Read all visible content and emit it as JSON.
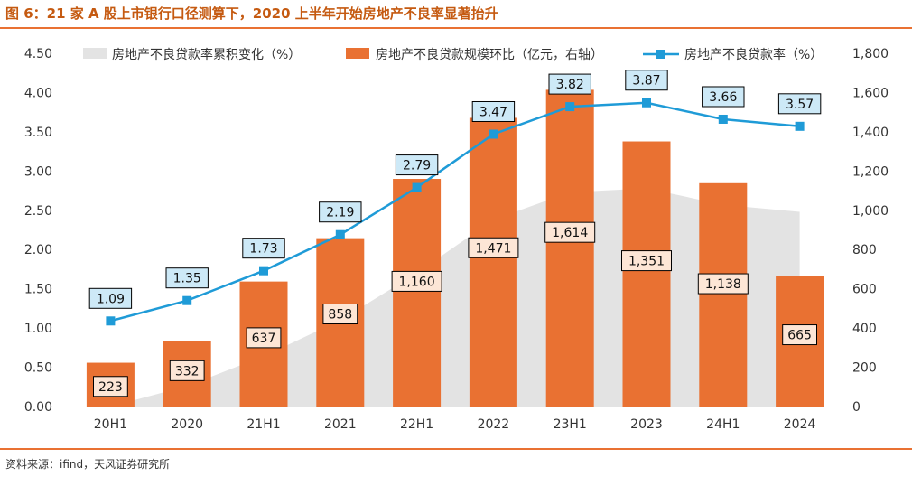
{
  "header": {
    "title": "图 6：21 家 A 股上市银行口径测算下，2020 上半年开始房地产不良率显著抬升"
  },
  "footer": {
    "source": "资料来源：ifind，天风证券研究所"
  },
  "colors": {
    "bar": "#e97132",
    "line": "#1f9bd7",
    "area": "#e3e3e3",
    "label_bar_bg": "#fde6d6",
    "label_line_bg": "#cde9f7"
  },
  "chart_data": {
    "type": "bar",
    "categories": [
      "20H1",
      "2020",
      "21H1",
      "2021",
      "22H1",
      "2022",
      "23H1",
      "2023",
      "24H1",
      "2024"
    ],
    "legend_position": "top",
    "series": [
      {
        "name": "房地产不良贷款率累积变化（%）",
        "type": "area",
        "axis": "left",
        "values": [
          0.0,
          0.26,
          0.64,
          1.1,
          1.7,
          2.38,
          2.73,
          2.78,
          2.57,
          2.48
        ]
      },
      {
        "name": "房地产不良贷款规模环比（亿元，右轴）",
        "type": "bar",
        "axis": "right",
        "values": [
          223,
          332,
          637,
          858,
          1160,
          1471,
          1614,
          1351,
          1138,
          665
        ],
        "labels": [
          "223",
          "332",
          "637",
          "858",
          "1,160",
          "1,471",
          "1,614",
          "1,351",
          "1,138",
          "665"
        ]
      },
      {
        "name": "房地产不良贷款率（%）",
        "type": "line",
        "axis": "left",
        "values": [
          1.09,
          1.35,
          1.73,
          2.19,
          2.79,
          3.47,
          3.82,
          3.87,
          3.66,
          3.57
        ],
        "labels": [
          "1.09",
          "1.35",
          "1.73",
          "2.19",
          "2.79",
          "3.47",
          "3.82",
          "3.87",
          "3.66",
          "3.57"
        ]
      }
    ],
    "y_left": {
      "ylim": [
        0,
        4.5
      ],
      "ticks": [
        "0.00",
        "0.50",
        "1.00",
        "1.50",
        "2.00",
        "2.50",
        "3.00",
        "3.50",
        "4.00",
        "4.50"
      ]
    },
    "y_right": {
      "ylim": [
        0,
        1800
      ],
      "ticks": [
        "0",
        "200",
        "400",
        "600",
        "800",
        "1,000",
        "1,200",
        "1,400",
        "1,600",
        "1,800"
      ]
    },
    "grid": false
  }
}
